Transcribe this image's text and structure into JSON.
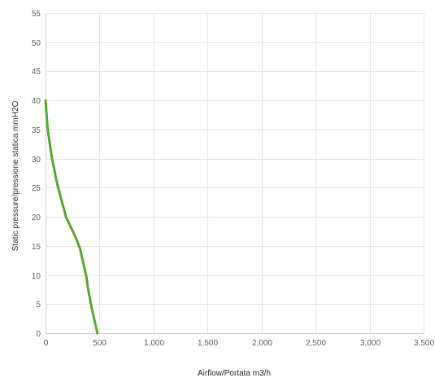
{
  "chart_data": {
    "type": "line",
    "xlabel": "Airflow/Portata m3/h",
    "ylabel": "Static pressure/pressione statica mmH2O",
    "xlim": [
      0,
      3500
    ],
    "ylim": [
      0,
      55
    ],
    "x_ticks": [
      0,
      500,
      1000,
      1500,
      2000,
      2500,
      3000,
      3500
    ],
    "x_tick_labels": [
      "0",
      "500",
      "1,000",
      "1,500",
      "2,000",
      "2,500",
      "3,000",
      "3,500"
    ],
    "y_ticks": [
      0,
      5,
      10,
      15,
      20,
      25,
      30,
      35,
      40,
      45,
      50,
      55
    ],
    "y_tick_labels": [
      "0",
      "5",
      "10",
      "15",
      "20",
      "25",
      "30",
      "35",
      "40",
      "45",
      "50",
      "55"
    ],
    "grid": true,
    "legend": "none",
    "colors": {
      "series": "#5aaa32",
      "grid": "#e6e6e6"
    },
    "series": [
      {
        "x": [
          0,
          20,
          60,
          110,
          190,
          240,
          290,
          320,
          350,
          380,
          395,
          425,
          480
        ],
        "y": [
          40,
          35,
          30,
          25.5,
          20,
          18,
          16,
          14.5,
          12,
          9.5,
          7.5,
          4.5,
          0
        ]
      }
    ]
  }
}
